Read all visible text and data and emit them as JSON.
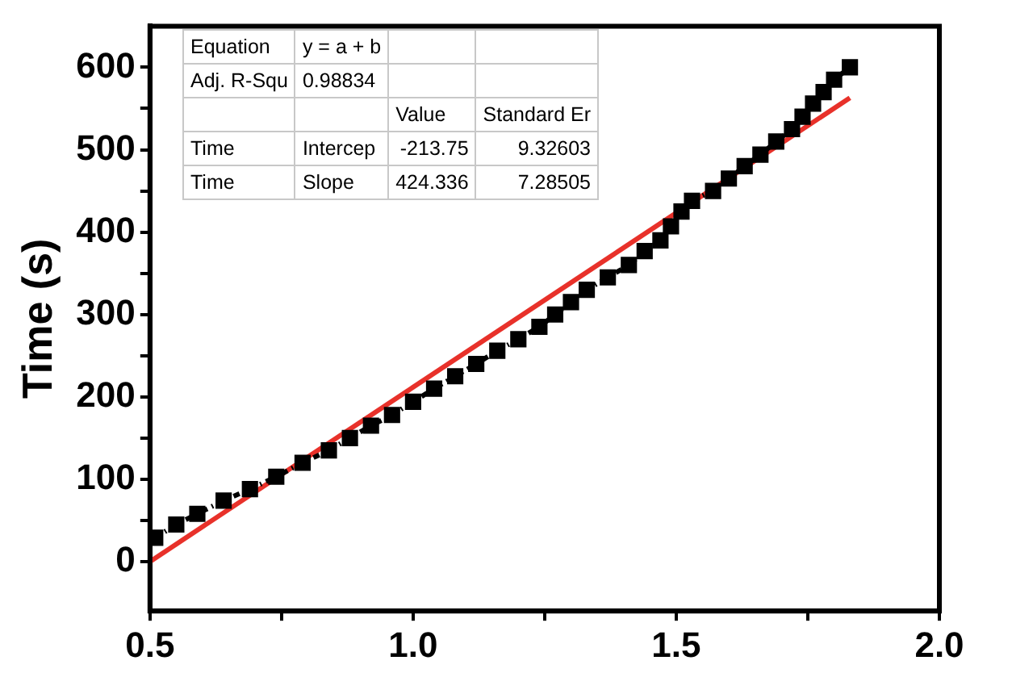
{
  "chart_data": {
    "type": "line",
    "ylabel": "Time (s)",
    "xlim": [
      0.5,
      2.0
    ],
    "ylim": [
      -60,
      650
    ],
    "xticks": [
      0.5,
      {
        "value": 0.75,
        "label": null
      },
      {
        "value": 1.0,
        "label": "1.0"
      },
      {
        "value": 1.25,
        "label": null
      },
      1.5,
      {
        "value": 1.75,
        "label": null
      },
      {
        "value": 2.0,
        "label": "2.0"
      }
    ],
    "yticks": [
      0,
      {
        "value": 50,
        "label": null
      },
      100,
      {
        "value": 150,
        "label": null
      },
      200,
      {
        "value": 250,
        "label": null
      },
      300,
      {
        "value": 350,
        "label": null
      },
      400,
      {
        "value": 450,
        "label": null
      },
      500,
      {
        "value": 550,
        "label": null
      },
      600
    ],
    "grid": false,
    "legend": false,
    "series": [
      {
        "color": "#000000",
        "marker": "square",
        "line_style": "dotted",
        "x": [
          0.51,
          0.55,
          0.59,
          0.64,
          0.69,
          0.74,
          0.79,
          0.84,
          0.88,
          0.92,
          0.96,
          1.0,
          1.04,
          1.08,
          1.12,
          1.16,
          1.2,
          1.24,
          1.27,
          1.3,
          1.33,
          1.37,
          1.41,
          1.44,
          1.47,
          1.49,
          1.51,
          1.53,
          1.57,
          1.6,
          1.63,
          1.66,
          1.69,
          1.72,
          1.74,
          1.76,
          1.78,
          1.8,
          1.83
        ],
        "values": [
          29,
          45,
          58,
          74,
          88,
          103,
          120,
          135,
          150,
          165,
          178,
          194,
          210,
          225,
          240,
          256,
          270,
          285,
          300,
          315,
          330,
          345,
          360,
          377,
          390,
          407,
          425,
          438,
          450,
          465,
          480,
          494,
          510,
          525,
          540,
          556,
          570,
          585,
          600
        ]
      },
      {
        "color": "#e8312a",
        "marker": "none",
        "line_style": "solid",
        "x": [
          0.5,
          1.83
        ],
        "values": [
          0,
          563
        ]
      }
    ],
    "annotations": [
      "Equation",
      "y = a + b",
      "Adj. R-Squ",
      "0.98834",
      "Value",
      "Standard Er",
      "Time",
      "Intercep",
      "-213.75",
      "9.32603",
      "Time",
      "Slope",
      "424.336",
      "7.28505"
    ]
  }
}
